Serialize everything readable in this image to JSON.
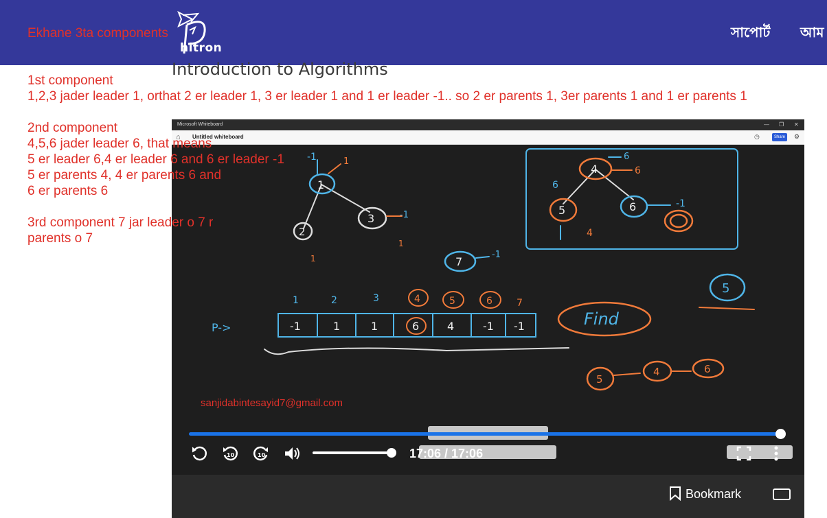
{
  "header": {
    "logo_text": "hitron",
    "nav": [
      "সাপোর্ট",
      "আম"
    ]
  },
  "page": {
    "title": "Introduction to Algorithms"
  },
  "notes": {
    "title": "Ekhane 3ta components",
    "lines": [
      "1st component",
      "1,2,3 jader leader 1, orthat 2 er leader 1, 3 er leader 1 and 1 er leader -1.. so 2 er parents 1, 3er parents 1 and 1 er parents 1",
      "",
      "2nd component",
      "4,5,6 jader leader 6, that means",
      "5 er leader 6,4 er leader 6 and 6 er leader -1",
      "5 er parents 4, 4 er parents 6 and",
      "6 er parents 6",
      "",
      "3rd component 7 jar leader o 7 r",
      "parents o 7"
    ]
  },
  "whiteboard": {
    "app_title": "Microsoft Whiteboard",
    "doc_title": "Untitled whiteboard",
    "share_label": "Share",
    "array_label": "P->",
    "indices": [
      "1",
      "2",
      "3",
      "4",
      "5",
      "6",
      "7"
    ],
    "values": [
      "-1",
      "1",
      "1",
      "6",
      "4",
      "-1",
      "-1"
    ],
    "find_label": "Find",
    "tree1": {
      "root": "1",
      "left": "2",
      "right": "3",
      "root_parent": "-1",
      "left_parent": "1",
      "right_parent": "-1",
      "under_left": "1",
      "under_right": "1"
    },
    "tree2": {
      "root": "4",
      "left": "5",
      "right": "6",
      "root_parent": "6",
      "top_label": "6",
      "left_parent": "4",
      "left_side": "6",
      "right_parent": "-1"
    },
    "node7": "7",
    "node7_parent": "-1",
    "node5_alone": "5",
    "path": [
      "5",
      "4",
      "6"
    ]
  },
  "video": {
    "email": "sanjidabintesayid7@gmail.com",
    "time": "17:06 / 17:06",
    "progress": 1.0,
    "volume": 1.0
  },
  "footer": {
    "bookmark_label": "Bookmark"
  },
  "colors": {
    "header": "#34389a",
    "note": "#e0312a",
    "accent": "#1a73e8"
  }
}
